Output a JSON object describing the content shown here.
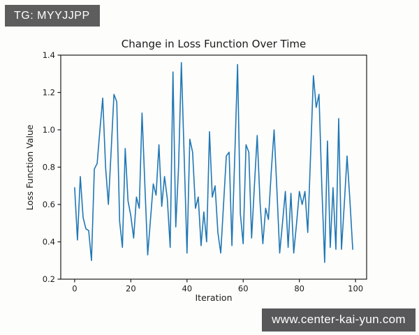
{
  "overlays": {
    "badge_text": "TG: MYYJJPP",
    "badge_bg": "#5d5d5d",
    "watermark_text": "www.center-kai-yun.com",
    "watermark_bg": "#58585a"
  },
  "chart_data": {
    "type": "line",
    "title": "Change in Loss Function Over Time",
    "xlabel": "Iteration",
    "ylabel": "Loss Function Value",
    "x_start": 0,
    "x_step": 1,
    "n_points": 100,
    "values": [
      0.69,
      0.41,
      0.75,
      0.53,
      0.47,
      0.46,
      0.3,
      0.79,
      0.82,
      1.0,
      1.17,
      0.8,
      0.6,
      0.89,
      1.19,
      1.15,
      0.51,
      0.37,
      0.9,
      0.62,
      0.54,
      0.42,
      0.64,
      0.58,
      1.09,
      0.7,
      0.33,
      0.52,
      0.71,
      0.65,
      0.92,
      0.59,
      0.75,
      0.63,
      0.37,
      1.31,
      0.48,
      0.8,
      1.36,
      0.85,
      0.34,
      0.95,
      0.88,
      0.58,
      0.64,
      0.38,
      0.56,
      0.4,
      0.99,
      0.64,
      0.7,
      0.45,
      0.34,
      0.6,
      0.86,
      0.88,
      0.38,
      0.86,
      1.35,
      0.55,
      0.39,
      0.92,
      0.88,
      0.42,
      0.7,
      0.97,
      0.61,
      0.39,
      0.58,
      0.52,
      0.78,
      1.0,
      0.68,
      0.34,
      0.5,
      0.67,
      0.37,
      0.66,
      0.34,
      0.5,
      0.67,
      0.6,
      0.67,
      0.45,
      0.87,
      1.29,
      1.12,
      1.19,
      0.7,
      0.29,
      0.94,
      0.37,
      0.69,
      0.36,
      1.06,
      0.36,
      0.6,
      0.86,
      0.62,
      0.36
    ],
    "xticks": [
      0,
      20,
      40,
      60,
      80,
      100
    ],
    "yticks": [
      0.2,
      0.4,
      0.6,
      0.8,
      1.0,
      1.2,
      1.4
    ],
    "xlim": [
      -4.95,
      103.95
    ],
    "ylim": [
      0.2,
      1.4
    ],
    "line_color": "#1f77b4",
    "spine_color": "#1c1c1c",
    "grid": false,
    "legend": "none"
  }
}
